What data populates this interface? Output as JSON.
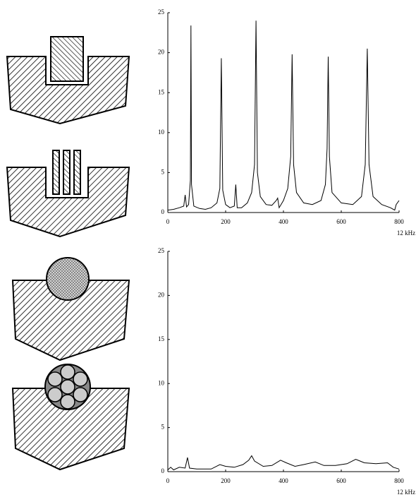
{
  "chart_data": [
    {
      "type": "line",
      "color": "#000000",
      "x_label": "12 kHz",
      "xlim": [
        0,
        800
      ],
      "ylim": [
        0,
        25
      ],
      "xticks": [
        0,
        200,
        400,
        600,
        800
      ],
      "yticks": [
        0,
        5,
        10,
        15,
        20,
        25
      ],
      "x": [
        0,
        20,
        40,
        55,
        60,
        65,
        72,
        78,
        80,
        82,
        90,
        110,
        130,
        150,
        170,
        180,
        185,
        190,
        200,
        215,
        230,
        235,
        240,
        255,
        275,
        290,
        300,
        305,
        310,
        320,
        340,
        360,
        375,
        380,
        385,
        400,
        415,
        425,
        430,
        435,
        445,
        470,
        500,
        530,
        545,
        551,
        555,
        559,
        568,
        600,
        640,
        670,
        683,
        690,
        696,
        710,
        740,
        770,
        785,
        790,
        800
      ],
      "values": [
        0.3,
        0.4,
        0.6,
        0.8,
        2.2,
        0.7,
        1.0,
        4,
        23.4,
        3.5,
        0.8,
        0.5,
        0.4,
        0.6,
        1.2,
        3,
        19.3,
        2.8,
        1.0,
        0.6,
        0.8,
        3.5,
        0.6,
        0.6,
        1.2,
        2.5,
        6,
        24,
        5,
        2.0,
        1.0,
        0.9,
        1.5,
        1.8,
        0.6,
        1.5,
        3,
        7,
        19.8,
        6,
        2.5,
        1.2,
        1.0,
        1.5,
        3.5,
        8,
        19.5,
        7,
        2.5,
        1.2,
        1.0,
        2,
        6,
        20.5,
        6,
        2,
        1.0,
        0.6,
        0.3,
        1.0,
        1.5
      ]
    },
    {
      "type": "line",
      "color": "#000000",
      "x_label": "12 kHz",
      "xlim": [
        0,
        800
      ],
      "ylim": [
        0,
        25
      ],
      "xticks": [
        0,
        200,
        400,
        600,
        800
      ],
      "yticks": [
        0,
        5,
        10,
        15,
        20,
        25
      ],
      "x": [
        0,
        10,
        20,
        40,
        60,
        68,
        75,
        100,
        150,
        180,
        200,
        230,
        260,
        280,
        290,
        300,
        330,
        360,
        390,
        410,
        440,
        470,
        510,
        540,
        580,
        620,
        650,
        680,
        720,
        760,
        780,
        800
      ],
      "values": [
        0.2,
        0.5,
        0.2,
        0.5,
        0.4,
        1.6,
        0.4,
        0.3,
        0.3,
        0.8,
        0.6,
        0.5,
        0.8,
        1.3,
        1.8,
        1.2,
        0.6,
        0.7,
        1.3,
        1.0,
        0.6,
        0.8,
        1.1,
        0.7,
        0.7,
        0.9,
        1.4,
        1.0,
        0.9,
        1.0,
        0.5,
        0.3
      ]
    }
  ]
}
